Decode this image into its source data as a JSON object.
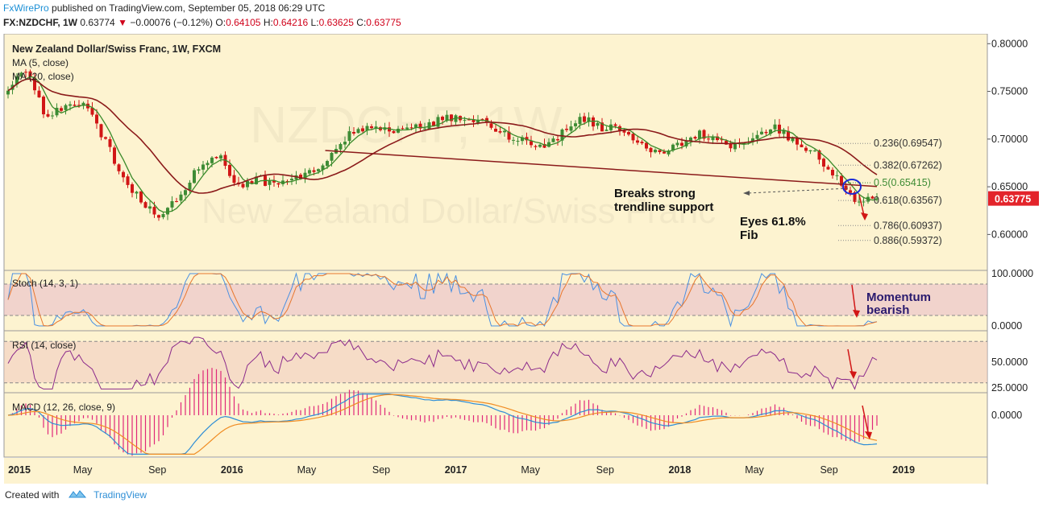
{
  "header": {
    "publisher": "FxWirePro",
    "published_text": "published on TradingView.com, September 05, 2018 06:29 UTC",
    "symbol": "FX:NZDCHF, 1W",
    "last": "0.63774",
    "change": "−0.00076 (−0.12%)",
    "open_label": "O:",
    "open": "0.64105",
    "high_label": "H:",
    "high": "0.64216",
    "low_label": "L:",
    "low": "0.63625",
    "close_label": "C:",
    "close": "0.63775"
  },
  "footer": {
    "created_with": "Created with",
    "tradingview": "TradingView"
  },
  "watermark": "NZDCHF, 1W",
  "watermark_sub": "New Zealand Dollar/Swiss Franc",
  "colors": {
    "background": "#fdf3d0",
    "bull": "#3e8c35",
    "bear": "#d11616",
    "ma5": "#3a8a2a",
    "ma20": "#8b1a1a",
    "stoch_k": "#4a90e2",
    "stoch_d": "#e8772e",
    "rsi": "#8b2a8b",
    "macd": "#2e8ed6",
    "signal": "#f08c22",
    "hist": "#e0287a",
    "price_tag": "#e3242b"
  },
  "chart_data": [
    {
      "type": "candlestick",
      "title": "New Zealand Dollar/Swiss Franc, 1W, FXCM",
      "indicators": [
        "MA (5, close)",
        "MA (20, close)"
      ],
      "ylim": [
        0.575,
        0.807
      ],
      "yticks": [
        "0.80000",
        "0.75000",
        "0.70000",
        "0.65000",
        "0.60000"
      ],
      "last_price": "0.63775",
      "x_labels": [
        "2015",
        "May",
        "Sep",
        "2016",
        "May",
        "Sep",
        "2017",
        "May",
        "Sep",
        "2018",
        "May",
        "Sep",
        "2019"
      ],
      "path_points": [
        [
          "2015-01",
          0.751
        ],
        [
          "2015-02",
          0.775
        ],
        [
          "2015-03",
          0.72
        ],
        [
          "2015-04",
          0.738
        ],
        [
          "2015-05",
          0.735
        ],
        [
          "2015-06",
          0.7
        ],
        [
          "2015-07",
          0.66
        ],
        [
          "2015-08",
          0.632
        ],
        [
          "2015-09",
          0.617
        ],
        [
          "2015-10",
          0.644
        ],
        [
          "2015-11",
          0.672
        ],
        [
          "2015-12",
          0.683
        ],
        [
          "2016-01",
          0.648
        ],
        [
          "2016-02",
          0.659
        ],
        [
          "2016-03",
          0.65
        ],
        [
          "2016-04",
          0.66
        ],
        [
          "2016-05",
          0.667
        ],
        [
          "2016-06",
          0.688
        ],
        [
          "2016-07",
          0.71
        ],
        [
          "2016-08",
          0.715
        ],
        [
          "2016-09",
          0.707
        ],
        [
          "2016-10",
          0.712
        ],
        [
          "2016-11",
          0.717
        ],
        [
          "2016-12",
          0.722
        ],
        [
          "2017-01",
          0.723
        ],
        [
          "2017-02",
          0.718
        ],
        [
          "2017-03",
          0.703
        ],
        [
          "2017-04",
          0.698
        ],
        [
          "2017-05",
          0.69
        ],
        [
          "2017-06",
          0.708
        ],
        [
          "2017-07",
          0.722
        ],
        [
          "2017-08",
          0.712
        ],
        [
          "2017-09",
          0.713
        ],
        [
          "2017-10",
          0.695
        ],
        [
          "2017-11",
          0.686
        ],
        [
          "2017-12",
          0.694
        ],
        [
          "2018-01",
          0.707
        ],
        [
          "2018-02",
          0.698
        ],
        [
          "2018-03",
          0.691
        ],
        [
          "2018-04",
          0.708
        ],
        [
          "2018-05",
          0.711
        ],
        [
          "2018-06",
          0.697
        ],
        [
          "2018-07",
          0.685
        ],
        [
          "2018-08",
          0.664
        ],
        [
          "2018-09",
          0.6378
        ]
      ],
      "fib_levels": [
        {
          "label": "0.236(0.69547)",
          "value": 0.69547
        },
        {
          "label": "0.382(0.67262)",
          "value": 0.67262
        },
        {
          "label": "0.5(0.65415)",
          "value": 0.65415
        },
        {
          "label": "0.618(0.63567)",
          "value": 0.63567
        },
        {
          "label": "0.786(0.60937)",
          "value": 0.60937
        },
        {
          "label": "0.886(0.59372)",
          "value": 0.59372
        }
      ],
      "trendline": [
        [
          "2016-06",
          0.688
        ],
        [
          "2018-09",
          0.6503
        ]
      ],
      "annotations": [
        {
          "text_lines": [
            "Breaks strong",
            "trendline support"
          ]
        },
        {
          "text_lines": [
            "Eyes 61.8%",
            "Fib"
          ]
        }
      ]
    },
    {
      "type": "line",
      "title": "Stoch (14, 3, 1)",
      "ylim": [
        0,
        100
      ],
      "yticks": [
        "100.0000",
        "0.0000"
      ],
      "bands": [
        20,
        80
      ],
      "annotation": [
        "Momentum",
        "bearish"
      ]
    },
    {
      "type": "line",
      "title": "RSI (14, close)",
      "ylim": [
        22,
        78
      ],
      "yticks": [
        "50.0000",
        "25.0000"
      ],
      "bands": [
        30,
        70
      ]
    },
    {
      "type": "line",
      "title": "MACD (12, 26, close, 9)",
      "yticks": [
        "0.0000"
      ]
    }
  ]
}
